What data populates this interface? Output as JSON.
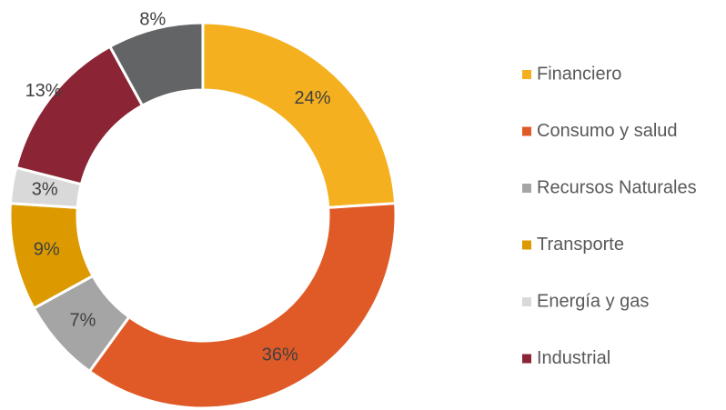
{
  "chart_data": {
    "type": "donut",
    "categories": [
      "Financiero",
      "Consumo y salud",
      "Recursos Naturales",
      "Transporte",
      "Energía y gas",
      "Industrial",
      null
    ],
    "values": [
      24,
      36,
      7,
      9,
      3,
      13,
      8
    ],
    "value_labels": [
      "24%",
      "36%",
      "7%",
      "9%",
      "3%",
      "13%",
      "8%"
    ],
    "colors": [
      "#f4b01e",
      "#e05a28",
      "#a5a5a5",
      "#dc9a00",
      "#d9d9d9",
      "#8b2535",
      "#636466"
    ],
    "legend": "right"
  }
}
